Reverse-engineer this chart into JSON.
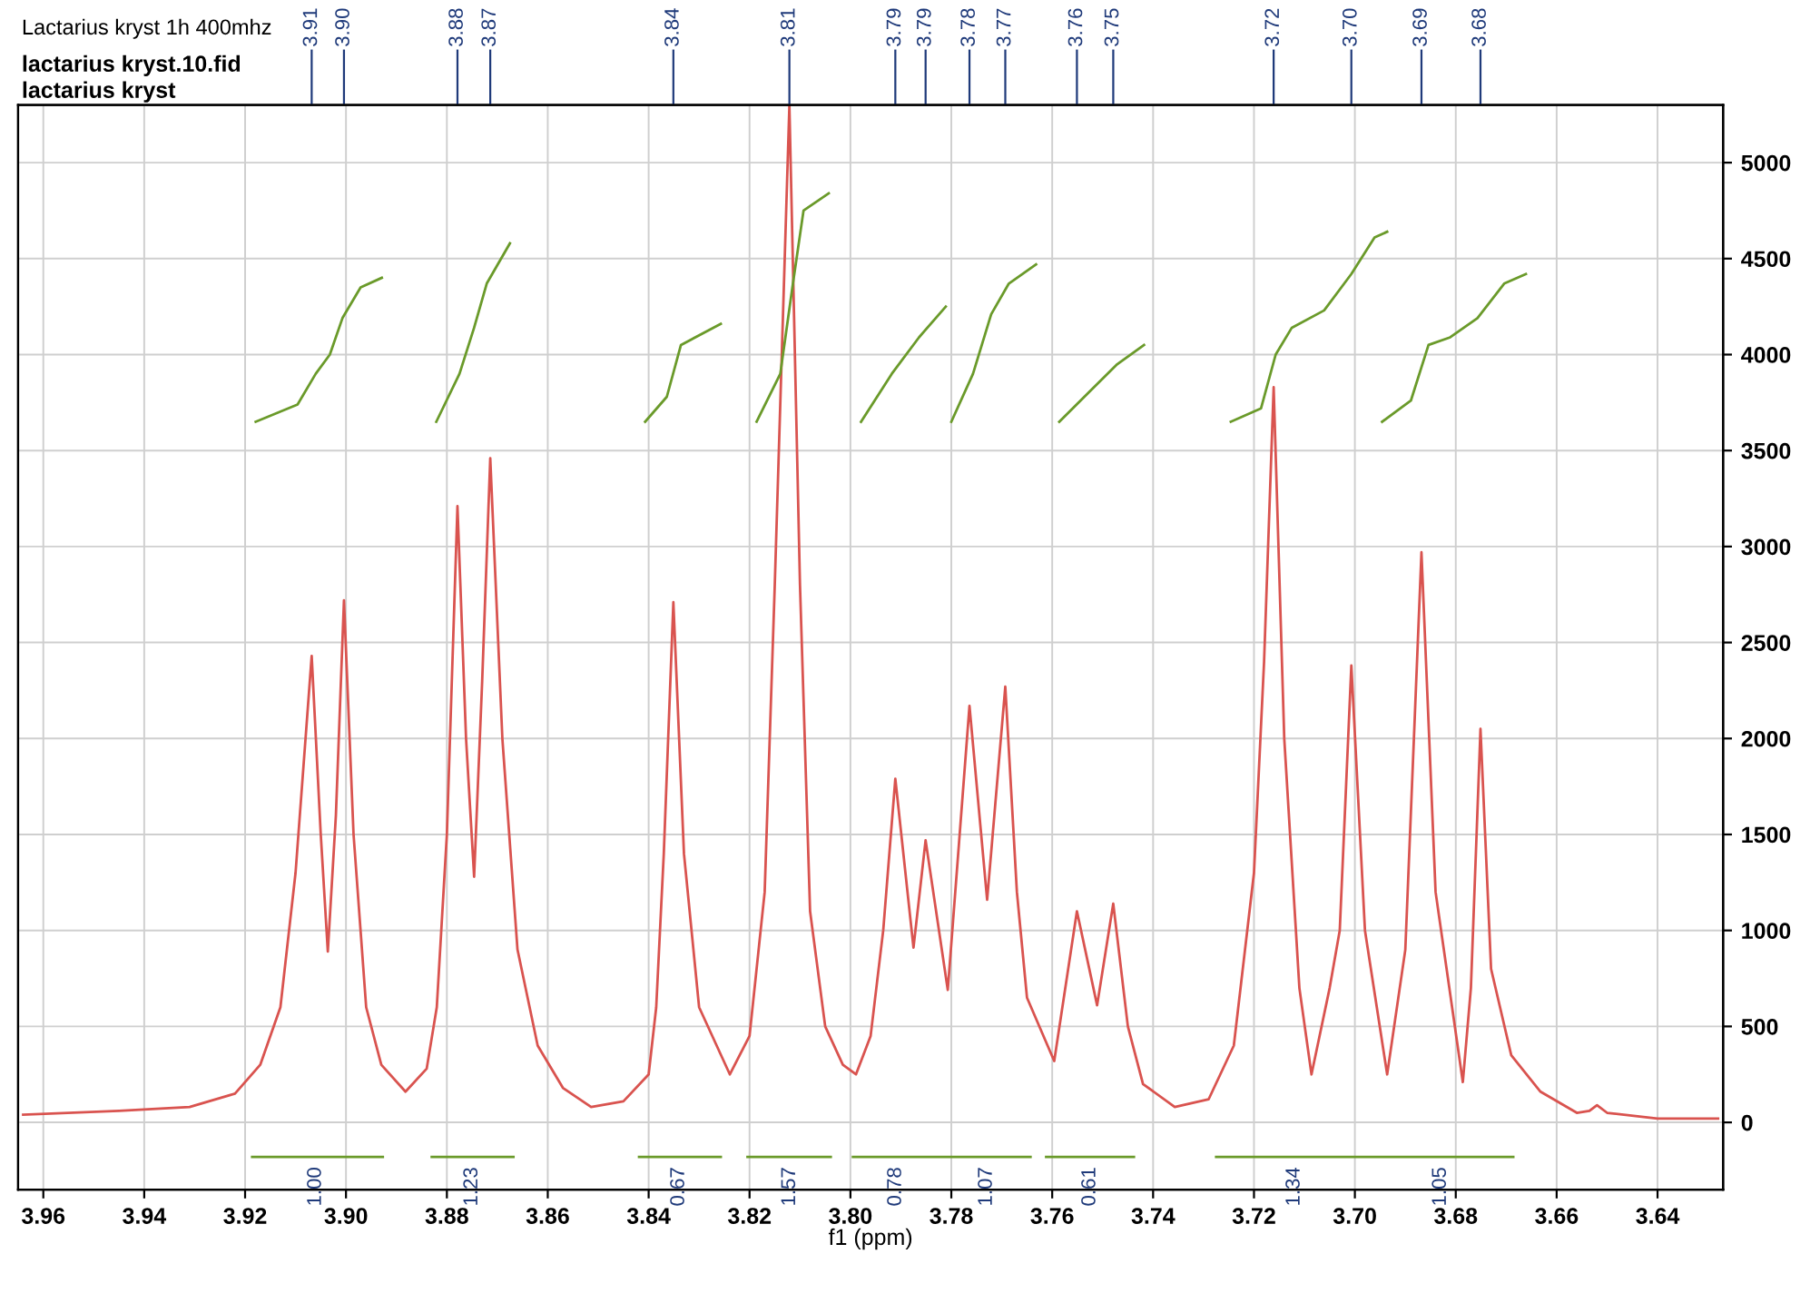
{
  "chart_data": {
    "type": "line",
    "title": "Lactarius kryst 1h 400mhz",
    "xlabel": "f1 (ppm)",
    "annotations": [
      "lactarius kryst.10.fid",
      "lactarius kryst",
      {
        "text": "1.00",
        "x": 3.906,
        "y": -180
      },
      {
        "text": "1.23",
        "x": 3.875,
        "y": -180
      },
      {
        "text": "0.67",
        "x": 3.834,
        "y": -180
      },
      {
        "text": "1.57",
        "x": 3.812,
        "y": -180
      },
      {
        "text": "0.78",
        "x": 3.791,
        "y": -180
      },
      {
        "text": "1.07",
        "x": 3.773,
        "y": -180
      },
      {
        "text": "0.61",
        "x": 3.7525,
        "y": -180
      },
      {
        "text": "1.34",
        "x": 3.712,
        "y": -180
      },
      {
        "text": "1.05",
        "x": 3.683,
        "y": -180
      }
    ],
    "xlim": [
      3.965,
      3.627
    ],
    "ylim": [
      -350,
      5300
    ],
    "xticks": [
      3.96,
      3.94,
      3.92,
      {
        "value": 3.9,
        "label": "3.90"
      },
      3.88,
      3.86,
      3.84,
      3.82,
      {
        "value": 3.8,
        "label": "3.80"
      },
      3.78,
      3.76,
      3.74,
      3.72,
      {
        "value": 3.7,
        "label": "3.70"
      },
      3.68,
      3.66,
      3.64
    ],
    "x2lim": [
      3.965,
      3.627
    ],
    "x2ticks": [
      {
        "value": 3.9068,
        "label": "3.91"
      },
      {
        "value": 3.9004,
        "label": "3.90"
      },
      {
        "value": 3.8779,
        "label": "3.88"
      },
      {
        "value": 3.8714,
        "label": "3.87"
      },
      {
        "value": 3.8351,
        "label": "3.84"
      },
      {
        "value": 3.8121,
        "label": "3.81"
      },
      {
        "value": 3.7911,
        "label": "3.79"
      },
      {
        "value": 3.7851,
        "label": "3.79"
      },
      {
        "value": 3.7764,
        "label": "3.78"
      },
      {
        "value": 3.7693,
        "label": "3.77"
      },
      {
        "value": 3.7551,
        "label": "3.76"
      },
      {
        "value": 3.7479,
        "label": "3.75"
      },
      {
        "value": 3.7161,
        "label": "3.72"
      },
      {
        "value": 3.7007,
        "label": "3.70"
      },
      {
        "value": 3.6868,
        "label": "3.69"
      },
      {
        "value": 3.6751,
        "label": "3.68"
      }
    ],
    "yticks": [
      0,
      500,
      1000,
      1500,
      2000,
      2500,
      3000,
      3500,
      4000,
      4500,
      5000
    ],
    "grid": true,
    "legend": false,
    "series": [
      {
        "color": "#d9534f",
        "x": [
          3.964,
          3.945,
          3.931,
          3.922,
          3.917,
          3.913,
          3.91,
          3.9068,
          3.905,
          3.9036,
          3.902,
          3.9004,
          3.8985,
          3.896,
          3.893,
          3.8882,
          3.884,
          3.882,
          3.88,
          3.8779,
          3.8762,
          3.8746,
          3.873,
          3.8714,
          3.869,
          3.866,
          3.862,
          3.857,
          3.8514,
          3.845,
          3.84,
          3.8385,
          3.837,
          3.8351,
          3.833,
          3.83,
          3.8239,
          3.82,
          3.817,
          3.815,
          3.8121,
          3.81,
          3.808,
          3.805,
          3.8015,
          3.7989,
          3.796,
          3.7935,
          3.7911,
          3.7875,
          3.7851,
          3.7807,
          3.7764,
          3.7729,
          3.7693,
          3.767,
          3.765,
          3.7596,
          3.7551,
          3.7511,
          3.7479,
          3.745,
          3.742,
          3.7357,
          3.729,
          3.724,
          3.72,
          3.718,
          3.7161,
          3.714,
          3.711,
          3.7086,
          3.705,
          3.703,
          3.7007,
          3.698,
          3.6936,
          3.69,
          3.6868,
          3.684,
          3.6786,
          3.677,
          3.6751,
          3.673,
          3.669,
          3.6632,
          3.656,
          3.6535,
          3.652,
          3.65,
          3.64,
          3.628
        ],
        "values": [
          40,
          60,
          80,
          150,
          300,
          600,
          1300,
          2430,
          1500,
          890,
          1600,
          2720,
          1500,
          600,
          300,
          160,
          280,
          600,
          1500,
          3210,
          2000,
          1280,
          2300,
          3460,
          2000,
          900,
          400,
          180,
          80,
          110,
          250,
          600,
          1400,
          2710,
          1400,
          600,
          250,
          450,
          1200,
          2800,
          5300,
          2800,
          1100,
          500,
          300,
          250,
          450,
          1000,
          1790,
          910,
          1470,
          690,
          2170,
          1160,
          2270,
          1200,
          650,
          320,
          1100,
          610,
          1140,
          500,
          200,
          80,
          120,
          400,
          1300,
          2400,
          3830,
          2000,
          700,
          250,
          700,
          1000,
          2380,
          1000,
          250,
          900,
          2970,
          1200,
          210,
          700,
          2050,
          800,
          350,
          160,
          50,
          60,
          90,
          50,
          20,
          20
        ]
      },
      {
        "color": "#6a9a2a",
        "x": [
          3.9179,
          3.9096,
          3.906,
          3.9032,
          3.9007,
          3.8971,
          3.8929
        ],
        "values": [
          3650,
          3740,
          3900,
          4000,
          4190,
          4350,
          4400
        ]
      },
      {
        "color": "#6a9a2a",
        "x": [
          3.8821,
          3.8775,
          3.8746,
          3.8721,
          3.8675
        ],
        "values": [
          3650,
          3900,
          4140,
          4370,
          4580
        ]
      },
      {
        "color": "#6a9a2a",
        "x": [
          3.8407,
          3.8364,
          3.8336,
          3.8257
        ],
        "values": [
          3650,
          3780,
          4050,
          4160
        ]
      },
      {
        "color": "#6a9a2a",
        "x": [
          3.8186,
          3.8139,
          3.8114,
          3.8093,
          3.8043
        ],
        "values": [
          3650,
          3900,
          4370,
          4750,
          4840
        ]
      },
      {
        "color": "#6a9a2a",
        "x": [
          3.7979,
          3.7918,
          3.7864,
          3.7811
        ],
        "values": [
          3650,
          3900,
          4090,
          4250
        ]
      },
      {
        "color": "#6a9a2a",
        "x": [
          3.78,
          3.7757,
          3.7721,
          3.7686,
          3.7632
        ],
        "values": [
          3650,
          3900,
          4210,
          4370,
          4470
        ]
      },
      {
        "color": "#6a9a2a",
        "x": [
          3.7586,
          3.7525,
          3.7471,
          3.7418
        ],
        "values": [
          3650,
          3810,
          3950,
          4050
        ]
      },
      {
        "color": "#6a9a2a",
        "x": [
          3.7246,
          3.7186,
          3.7157,
          3.7125,
          3.7061,
          3.7007,
          3.6961,
          3.6936
        ],
        "values": [
          3650,
          3720,
          4000,
          4140,
          4230,
          4420,
          4610,
          4640
        ]
      },
      {
        "color": "#6a9a2a",
        "x": [
          3.6946,
          3.6889,
          3.6854,
          3.6811,
          3.6757,
          3.6704,
          3.6661
        ],
        "values": [
          3650,
          3760,
          4050,
          4090,
          4190,
          4370,
          4420
        ]
      },
      {
        "color": "#6a9a2a",
        "x": [
          3.9186,
          3.8927
        ],
        "values": [
          -180,
          -180
        ]
      },
      {
        "color": "#6a9a2a",
        "x": [
          3.883,
          3.8668
        ],
        "values": [
          -180,
          -180
        ]
      },
      {
        "color": "#6a9a2a",
        "x": [
          3.8419,
          3.8257
        ],
        "values": [
          -180,
          -180
        ]
      },
      {
        "color": "#6a9a2a",
        "x": [
          3.8204,
          3.8039
        ],
        "values": [
          -180,
          -180
        ]
      },
      {
        "color": "#6a9a2a",
        "x": [
          3.7995,
          3.7821,
          3.7643
        ],
        "values": [
          -180,
          -180,
          -180
        ]
      },
      {
        "color": "#6a9a2a",
        "x": [
          3.7612,
          3.7438
        ],
        "values": [
          -180,
          -180
        ]
      },
      {
        "color": "#6a9a2a",
        "x": [
          3.7275,
          3.6971,
          3.6686
        ],
        "values": [
          -180,
          -180,
          -180
        ]
      }
    ]
  }
}
